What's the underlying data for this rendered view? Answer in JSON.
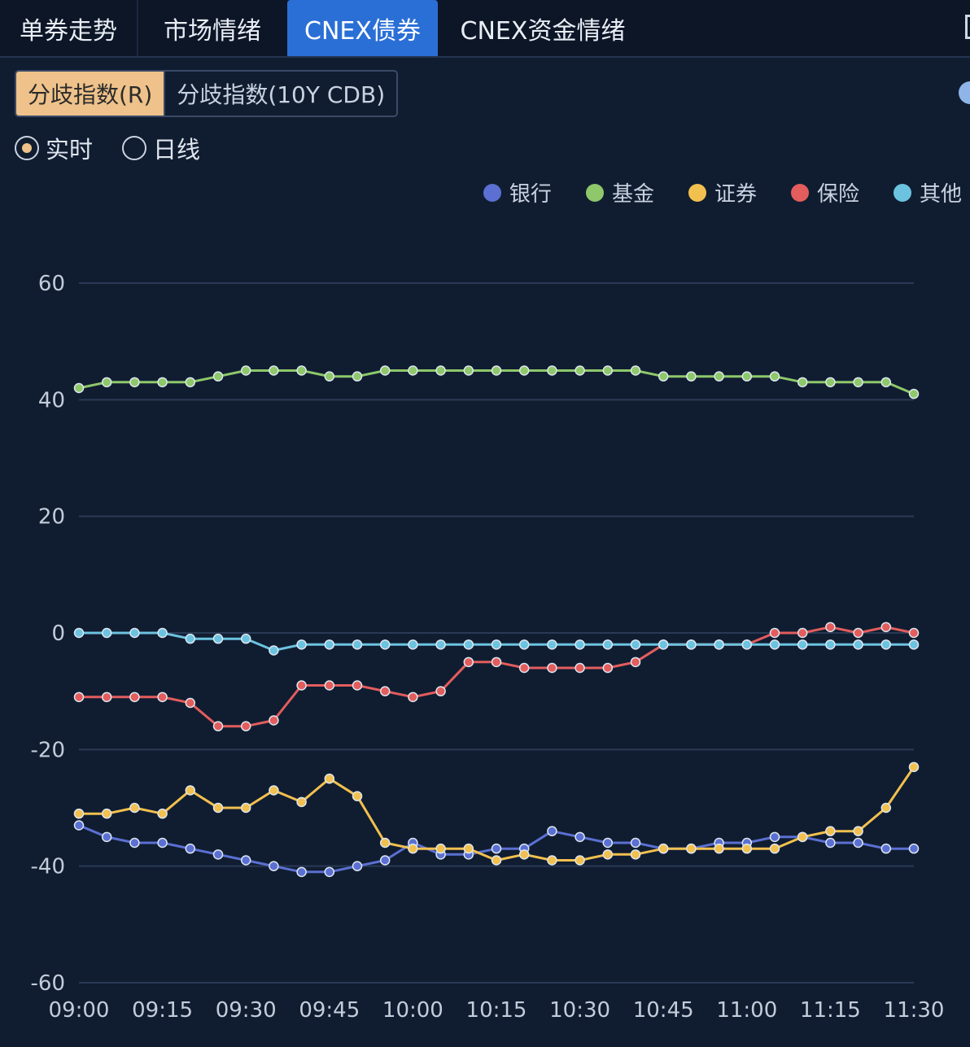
{
  "tabs": [
    {
      "label": "单券走势",
      "active": false
    },
    {
      "label": "市场情绪",
      "active": false
    },
    {
      "label": "CNEX债券",
      "active": true
    },
    {
      "label": "CNEX资金情绪",
      "active": false
    }
  ],
  "segments": [
    {
      "label": "分歧指数(R)",
      "active": true
    },
    {
      "label": "分歧指数(10Y CDB)",
      "active": false
    }
  ],
  "radios": [
    {
      "label": "实时",
      "checked": true
    },
    {
      "label": "日线",
      "checked": false
    }
  ],
  "colors": {
    "accent": "#2a6fd6",
    "segment_active": "#eec28a",
    "background": "#101d31"
  },
  "chart_data": {
    "type": "line",
    "title": "",
    "xlabel": "",
    "ylabel": "",
    "ylim": [
      -60,
      60
    ],
    "yticks": [
      "60",
      "40",
      "20",
      "0",
      "-20",
      "-40",
      "-60"
    ],
    "xticks": [
      "09:00",
      "09:15",
      "09:30",
      "09:45",
      "10:00",
      "10:15",
      "10:30",
      "10:45",
      "11:00",
      "11:15",
      "11:30"
    ],
    "grid": true,
    "legend_position": "top-right",
    "x": [
      "09:00",
      "09:05",
      "09:10",
      "09:15",
      "09:20",
      "09:25",
      "09:30",
      "09:35",
      "09:40",
      "09:45",
      "09:50",
      "09:55",
      "10:00",
      "10:05",
      "10:10",
      "10:15",
      "10:20",
      "10:25",
      "10:30",
      "10:35",
      "10:40",
      "10:45",
      "10:50",
      "10:55",
      "11:00",
      "11:05",
      "11:10",
      "11:15",
      "11:20",
      "11:25",
      "11:30"
    ],
    "series": [
      {
        "name": "银行",
        "color": "#5b70d2",
        "values": [
          -33,
          -35,
          -36,
          -36,
          -37,
          -38,
          -39,
          -40,
          -41,
          -41,
          -40,
          -39,
          -36,
          -38,
          -38,
          -37,
          -37,
          -34,
          -35,
          -36,
          -36,
          -37,
          -37,
          -36,
          -36,
          -35,
          -35,
          -36,
          -36,
          -37,
          -37
        ]
      },
      {
        "name": "基金",
        "color": "#8ec86a",
        "values": [
          42,
          43,
          43,
          43,
          43,
          44,
          45,
          45,
          45,
          44,
          44,
          45,
          45,
          45,
          45,
          45,
          45,
          45,
          45,
          45,
          45,
          44,
          44,
          44,
          44,
          44,
          43,
          43,
          43,
          43,
          41
        ]
      },
      {
        "name": "证券",
        "color": "#f2c04e",
        "values": [
          -31,
          -31,
          -30,
          -31,
          -27,
          -30,
          -30,
          -27,
          -29,
          -25,
          -28,
          -36,
          -37,
          -37,
          -37,
          -39,
          -38,
          -39,
          -39,
          -38,
          -38,
          -37,
          -37,
          -37,
          -37,
          -37,
          -35,
          -34,
          -34,
          -30,
          -23
        ]
      },
      {
        "name": "保险",
        "color": "#e35d5d",
        "values": [
          -11,
          -11,
          -11,
          -11,
          -12,
          -16,
          -16,
          -15,
          -9,
          -9,
          -9,
          -10,
          -11,
          -10,
          -5,
          -5,
          -6,
          -6,
          -6,
          -6,
          -5,
          -2,
          -2,
          -2,
          -2,
          0,
          0,
          1,
          0,
          1,
          0
        ]
      },
      {
        "name": "其他",
        "color": "#6cc3e0",
        "values": [
          0,
          0,
          0,
          0,
          -1,
          -1,
          -1,
          -3,
          -2,
          -2,
          -2,
          -2,
          -2,
          -2,
          -2,
          -2,
          -2,
          -2,
          -2,
          -2,
          -2,
          -2,
          -2,
          -2,
          -2,
          -2,
          -2,
          -2,
          -2,
          -2,
          -2
        ]
      }
    ]
  }
}
